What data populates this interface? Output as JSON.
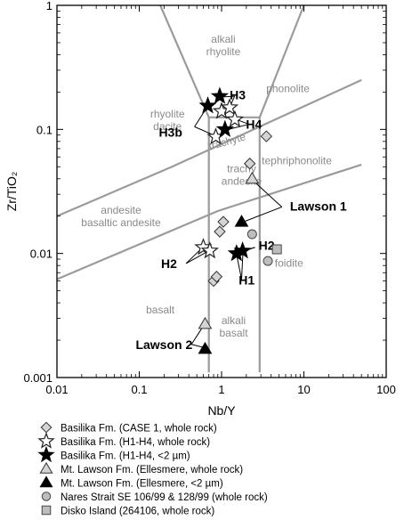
{
  "chart_data": {
    "type": "scatter",
    "xscale": "log",
    "yscale": "log",
    "xlim": [
      0.01,
      100
    ],
    "ylim": [
      0.001,
      1
    ],
    "xlabel": "Nb/Y",
    "ylabel": "Zr/TiO₂",
    "xticks": [
      {
        "v": 0.01,
        "label": "0.01"
      },
      {
        "v": 0.1,
        "label": "0.1"
      },
      {
        "v": 1,
        "label": "1"
      },
      {
        "v": 10,
        "label": "10"
      },
      {
        "v": 100,
        "label": "100"
      }
    ],
    "yticks": [
      {
        "v": 0.001,
        "label": "0.001"
      },
      {
        "v": 0.01,
        "label": "0.01"
      },
      {
        "v": 0.1,
        "label": "0.1"
      },
      {
        "v": 1,
        "label": "1"
      }
    ],
    "boundaries": [
      [
        [
          0.7,
          0.0011
        ],
        [
          0.7,
          0.125
        ],
        [
          0.18,
          1
        ]
      ],
      [
        [
          2.9,
          0.0011
        ],
        [
          2.9,
          0.125
        ],
        [
          10,
          1
        ]
      ],
      [
        [
          0.7,
          0.125
        ],
        [
          2.9,
          0.125
        ]
      ],
      [
        [
          0.01,
          0.0062
        ],
        [
          0.9,
          0.022
        ],
        [
          50,
          0.052
        ]
      ],
      [
        [
          0.01,
          0.02
        ],
        [
          0.25,
          0.05
        ],
        [
          50,
          0.25
        ]
      ]
    ],
    "fields": [
      {
        "name": "alkali rhyolite",
        "lines": [
          "alkali",
          "rhyolite"
        ],
        "x": 1.05,
        "y": 0.5
      },
      {
        "name": "phonolite",
        "lines": [
          "phonolite"
        ],
        "x": 6.4,
        "y": 0.2
      },
      {
        "name": "rhyolite dacite",
        "lines": [
          "rhyolite",
          "dacite"
        ],
        "x": 0.22,
        "y": 0.125
      },
      {
        "name": "trachyte",
        "lines": [
          "trachyte"
        ],
        "x": 1.2,
        "y": 0.075,
        "rotate": -16
      },
      {
        "name": "trachy andesite",
        "lines": [
          "trachy",
          "andesite"
        ],
        "x": 1.75,
        "y": 0.045
      },
      {
        "name": "tephriphonolite",
        "lines": [
          "tephriphonolite"
        ],
        "x": 8.2,
        "y": 0.0525
      },
      {
        "name": "andesite basaltic andesite",
        "lines": [
          "andesite",
          "basaltic andesite"
        ],
        "x": 0.06,
        "y": 0.021
      },
      {
        "name": "foidite",
        "lines": [
          "foidite"
        ],
        "x": 6.6,
        "y": 0.0078
      },
      {
        "name": "basalt",
        "lines": [
          "basalt"
        ],
        "x": 0.18,
        "y": 0.0033
      },
      {
        "name": "alkali basalt",
        "lines": [
          "alkali",
          "basalt"
        ],
        "x": 1.4,
        "y": 0.0027
      }
    ],
    "series": [
      {
        "name": "Basilika Fm. (CASE 1, whole rock)",
        "marker": "diamond-open",
        "points": [
          [
            3.5,
            0.088
          ],
          [
            2.2,
            0.053
          ],
          [
            1.05,
            0.018
          ],
          [
            0.95,
            0.015
          ],
          [
            0.8,
            0.006
          ],
          [
            0.87,
            0.0065
          ]
        ]
      },
      {
        "name": "Basilika Fm. (H1-H4, whole rock)",
        "marker": "star-open",
        "points": [
          [
            1.0,
            0.14
          ],
          [
            1.25,
            0.15
          ],
          [
            1.45,
            0.12
          ],
          [
            0.85,
            0.087
          ],
          [
            0.6,
            0.0112
          ],
          [
            0.72,
            0.0105
          ]
        ]
      },
      {
        "name": "Basilika Fm. (H1-H4, <2 µm)",
        "marker": "star-filled",
        "points": [
          [
            0.95,
            0.185
          ],
          [
            0.68,
            0.155
          ],
          [
            1.1,
            0.1
          ],
          [
            1.52,
            0.01
          ],
          [
            1.8,
            0.0105
          ]
        ]
      },
      {
        "name": "Mt. Lawson Fm. (Ellesmere, whole rock)",
        "marker": "triangle-open",
        "points": [
          [
            2.35,
            0.04
          ],
          [
            0.63,
            0.0027
          ]
        ]
      },
      {
        "name": "Mt. Lawson Fm. (Ellesmere, <2 µm)",
        "marker": "triangle-filled",
        "points": [
          [
            1.75,
            0.018
          ],
          [
            0.63,
            0.0017
          ]
        ]
      },
      {
        "name": "Nares Strait SE 106/99 & 128/99 (whole rock)",
        "marker": "circle",
        "points": [
          [
            2.35,
            0.0143
          ],
          [
            3.65,
            0.0087
          ]
        ]
      },
      {
        "name": "Disko Island (264106, whole rock)",
        "marker": "square",
        "points": [
          [
            4.7,
            0.0108
          ]
        ]
      }
    ],
    "annotations": [
      {
        "text": "H3",
        "x": 1.57,
        "y": 0.19,
        "lines": [
          [
            [
              1.44,
              0.185
            ],
            [
              1.06,
              0.183
            ]
          ],
          [
            [
              1.44,
              0.185
            ],
            [
              1.28,
              0.155
            ]
          ]
        ]
      },
      {
        "text": "H3b",
        "x": 0.24,
        "y": 0.095,
        "lines": [
          [
            [
              0.47,
              0.105
            ],
            [
              0.66,
              0.15
            ]
          ],
          [
            [
              0.47,
              0.105
            ],
            [
              0.8,
              0.09
            ]
          ]
        ]
      },
      {
        "text": "H4",
        "x": 2.47,
        "y": 0.11,
        "lines": [
          [
            [
              2.16,
              0.11
            ],
            [
              1.52,
              0.12
            ]
          ],
          [
            [
              2.16,
              0.11
            ],
            [
              1.2,
              0.1
            ]
          ]
        ]
      },
      {
        "text": "Lawson 1",
        "x": 15.0,
        "y": 0.024,
        "lines": [
          [
            [
              5.4,
              0.0237
            ],
            [
              2.4,
              0.0388
            ]
          ],
          [
            [
              5.4,
              0.0237
            ],
            [
              1.85,
              0.018
            ]
          ]
        ]
      },
      {
        "text": "H2",
        "x": 3.52,
        "y": 0.0116,
        "lines": [
          [
            [
              2.55,
              0.0112
            ],
            [
              1.62,
              0.0101
            ]
          ],
          [
            [
              2.55,
              0.0112
            ],
            [
              1.9,
              0.0106
            ]
          ]
        ]
      },
      {
        "text": "H2",
        "x": 0.23,
        "y": 0.0083,
        "lines": [
          [
            [
              0.37,
              0.0083
            ],
            [
              0.59,
              0.0112
            ]
          ],
          [
            [
              0.37,
              0.0083
            ],
            [
              0.7,
              0.0105
            ]
          ]
        ]
      },
      {
        "text": "H1",
        "x": 2.02,
        "y": 0.0061,
        "lines": [
          [
            [
              1.75,
              0.0062
            ],
            [
              1.52,
              0.0098
            ]
          ],
          [
            [
              1.75,
              0.0062
            ],
            [
              1.82,
              0.0103
            ]
          ]
        ]
      },
      {
        "text": "Lawson 2",
        "x": 0.2,
        "y": 0.00185,
        "lines": [
          [
            [
              0.43,
              0.00185
            ],
            [
              0.6,
              0.0026
            ]
          ],
          [
            [
              0.43,
              0.00185
            ],
            [
              0.6,
              0.00175
            ]
          ]
        ]
      }
    ],
    "legend_position": "below"
  }
}
